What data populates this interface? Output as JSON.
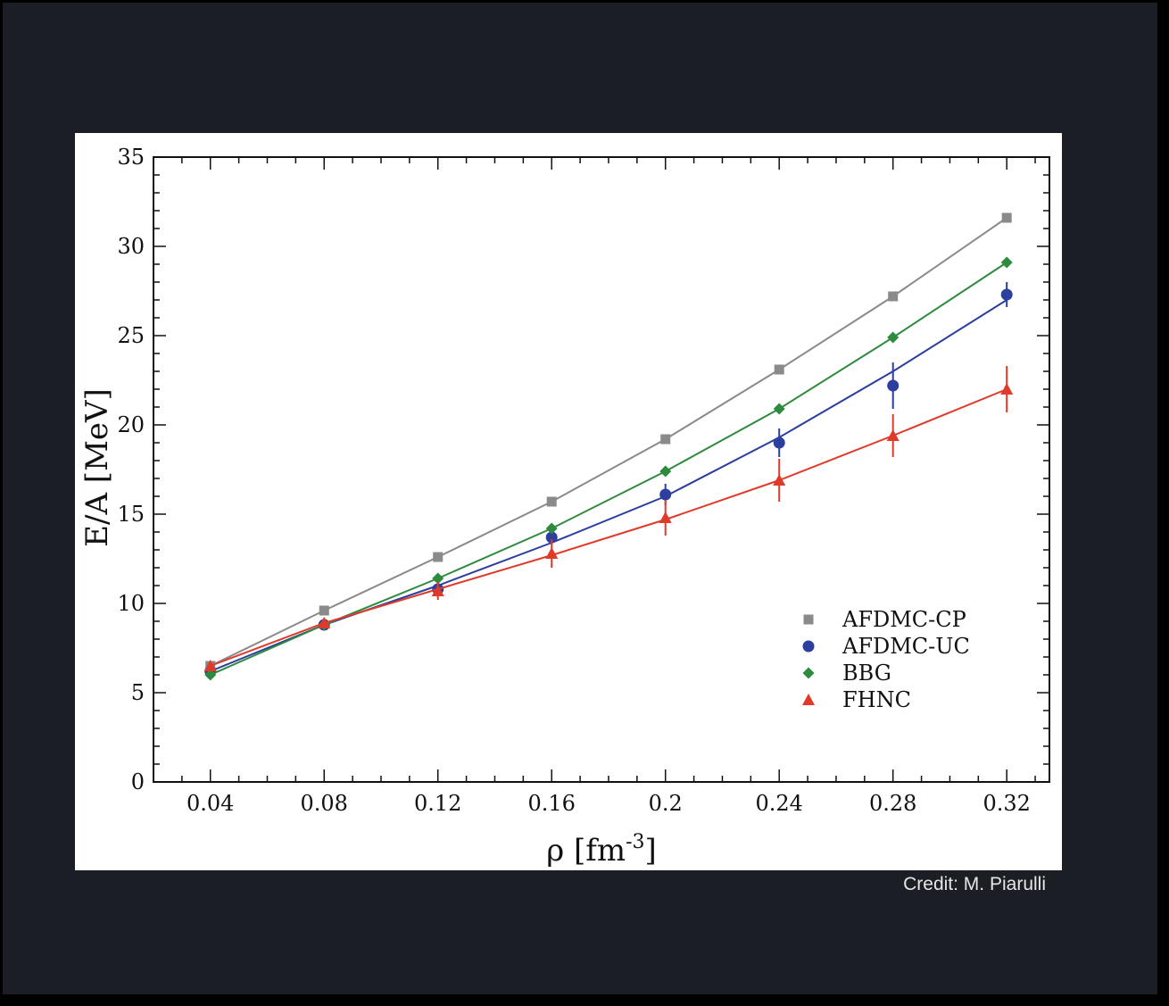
{
  "credit": "Credit: M. Piarulli",
  "chart_data": {
    "type": "line",
    "xlabel": "ρ [fm",
    "xlabel_sup": "-3",
    "xlabel_close": "]",
    "ylabel": "E/A [MeV]",
    "xlim": [
      0.02,
      0.335
    ],
    "ylim": [
      0,
      35
    ],
    "x": [
      0.04,
      0.08,
      0.12,
      0.16,
      0.2,
      0.24,
      0.28,
      0.32
    ],
    "x_tick_labels": [
      "0.04",
      "0.08",
      "0.12",
      "0.16",
      "0.2",
      "0.24",
      "0.28",
      "0.32"
    ],
    "y_ticks": [
      0,
      5,
      10,
      15,
      20,
      25,
      30,
      35
    ],
    "y_tick_labels": [
      "0",
      "5",
      "10",
      "15",
      "20",
      "25",
      "30",
      "35"
    ],
    "legend_position": "bottom-right",
    "series": [
      {
        "name": "AFDMC-CP",
        "marker": "square",
        "color": "#8a8a8a",
        "values": [
          6.5,
          9.6,
          12.6,
          15.7,
          19.2,
          23.1,
          27.2,
          31.6
        ],
        "fit": [
          6.5,
          9.6,
          12.6,
          15.7,
          19.2,
          23.1,
          27.2,
          31.6
        ],
        "errors": [
          0,
          0,
          0,
          0,
          0,
          0,
          0,
          0
        ]
      },
      {
        "name": "AFDMC-UC",
        "marker": "circle",
        "color": "#2c3e9e",
        "values": [
          6.2,
          8.8,
          10.8,
          13.7,
          16.1,
          19.0,
          22.2,
          27.3
        ],
        "fit": [
          6.2,
          8.8,
          11.0,
          13.4,
          16.0,
          19.3,
          23.0,
          27.0
        ],
        "errors": [
          0.2,
          0.2,
          0.3,
          0.4,
          0.6,
          0.8,
          1.3,
          0.7
        ]
      },
      {
        "name": "BBG",
        "marker": "diamond",
        "color": "#2e8b3e",
        "values": [
          6.0,
          8.8,
          11.4,
          14.2,
          17.4,
          20.9,
          24.9,
          29.1
        ],
        "fit": [
          6.0,
          8.8,
          11.4,
          14.2,
          17.4,
          20.9,
          24.9,
          29.1
        ],
        "errors": [
          0,
          0,
          0,
          0,
          0,
          0,
          0,
          0
        ]
      },
      {
        "name": "FHNC",
        "marker": "triangle",
        "color": "#e03a2a",
        "values": [
          6.5,
          8.9,
          10.7,
          12.8,
          14.8,
          16.9,
          19.4,
          22.0
        ],
        "fit": [
          6.5,
          8.9,
          10.8,
          12.7,
          14.7,
          16.9,
          19.4,
          22.0
        ],
        "errors": [
          0.2,
          0.3,
          0.5,
          0.8,
          1.0,
          1.2,
          1.2,
          1.3
        ]
      }
    ]
  }
}
